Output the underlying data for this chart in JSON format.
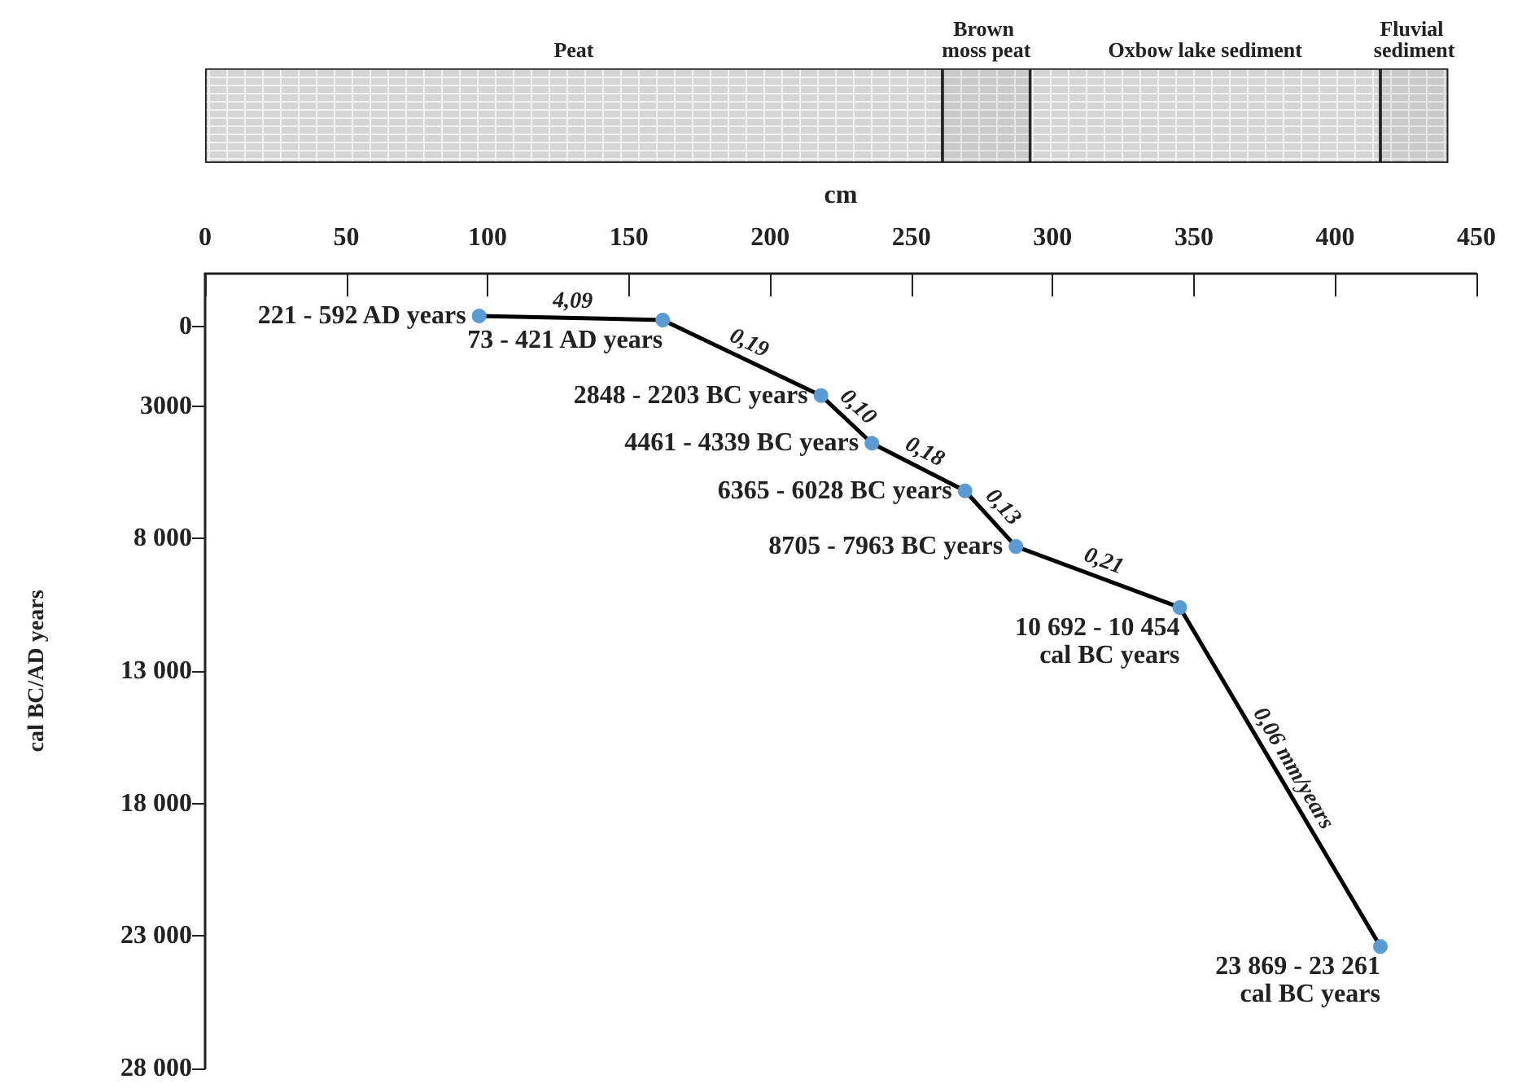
{
  "chart_data": [
    {
      "type": "bar",
      "orientation": "horizontal",
      "stacked": true,
      "categories": [
        null
      ],
      "xlim": [
        0,
        450
      ],
      "grid": false,
      "legend": false,
      "series": [
        {
          "name": "Peat",
          "color": "#f2f2f2",
          "values": [
            261
          ]
        },
        {
          "name": "Brown moss peat",
          "color": "#e6e6e6",
          "values": [
            31
          ]
        },
        {
          "name": "Oxbow lake sediment",
          "color": "#f2f2f2",
          "values": [
            124
          ]
        },
        {
          "name": "Fluvial sediment",
          "color": "#e6e6e6",
          "values": [
            24
          ]
        }
      ]
    },
    {
      "type": "line",
      "xlabel": "cm",
      "ylabel": "cal BC/AD years",
      "xlim": [
        0,
        450
      ],
      "xticks": [
        0,
        50,
        100,
        150,
        200,
        250,
        300,
        350,
        400,
        450
      ],
      "ylim": [
        28000,
        -2000
      ],
      "yticks": [
        0,
        3000,
        {
          "value": 8000,
          "label": "8 000"
        },
        {
          "value": 13000,
          "label": "13 000"
        },
        {
          "value": 18000,
          "label": "18 000"
        },
        {
          "value": 23000,
          "label": "23 000"
        },
        {
          "value": 28000,
          "label": "28 000"
        }
      ],
      "grid": false,
      "legend": false,
      "marker": "circle",
      "line_style": "solid",
      "series": [
        {
          "color": "#000000",
          "colors": [
            "#5b9bd5",
            "#5b9bd5",
            "#5b9bd5",
            "#5b9bd5",
            "#5b9bd5",
            "#5b9bd5",
            "#5b9bd5",
            "#5b9bd5"
          ],
          "x": [
            97,
            162,
            218,
            236,
            269,
            287,
            345,
            416
          ],
          "values": [
            -400,
            -250,
            2600,
            4400,
            6200,
            8300,
            10600,
            23400
          ]
        }
      ],
      "annotations": [
        {
          "text": "221 - 592 AD years",
          "x": 97,
          "y": -400
        },
        {
          "text": "73 - 421 AD years",
          "x": 162,
          "y": -250
        },
        {
          "text": "2848 - 2203 BC years",
          "x": 218,
          "y": 2600
        },
        {
          "text": "4461 - 4339 BC years",
          "x": 236,
          "y": 4400
        },
        {
          "text": "6365 - 6028 BC years",
          "x": 269,
          "y": 6200
        },
        {
          "text": "8705 - 7963 BC years",
          "x": 287,
          "y": 8300
        },
        {
          "text": "10 692 - 10 454 cal BC years",
          "x": 345,
          "y": 10600
        },
        {
          "text": "23 869 - 23 261 cal BC years",
          "x": 416,
          "y": 23400
        },
        {
          "text": "4,09",
          "x": 130,
          "y": -325
        },
        {
          "text": "0,19",
          "x": 190,
          "y": 1200
        },
        {
          "text": "0,10",
          "x": 227,
          "y": 3500
        },
        {
          "text": "0,18",
          "x": 252,
          "y": 5300
        },
        {
          "text": "0,13",
          "x": 278,
          "y": 7250
        },
        {
          "text": "0,21",
          "x": 316,
          "y": 9450
        },
        {
          "text": "0,06 mm/years",
          "x": 380,
          "y": 17000
        }
      ]
    }
  ]
}
